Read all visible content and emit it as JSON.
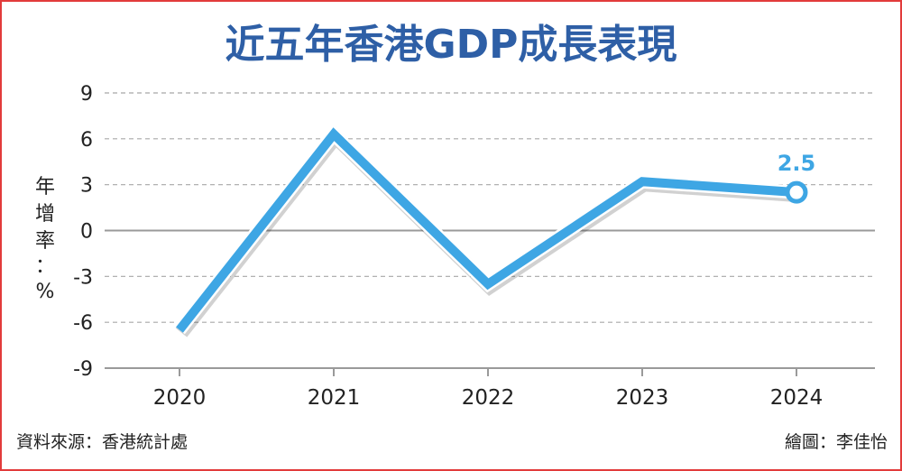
{
  "chart_data": {
    "type": "line",
    "title": "近五年香港GDP成長表現",
    "x": [
      "2020",
      "2021",
      "2022",
      "2023",
      "2024"
    ],
    "series": [
      {
        "values": [
          -6.5,
          6.3,
          -3.5,
          3.2,
          2.5
        ]
      }
    ],
    "ylabel": "年增率：%",
    "ylim": [
      -9,
      9
    ],
    "yticks": [
      9,
      6,
      3,
      0,
      -3,
      -6,
      -9
    ],
    "grid": true,
    "data_labels": [
      {
        "x": "2024",
        "text": "2.5"
      }
    ],
    "line_color": "#3ea6e4",
    "title_color": "#2e5fa6"
  },
  "source_note": "資料來源：香港統計處",
  "credit_note": "繪圖：李佳怡"
}
